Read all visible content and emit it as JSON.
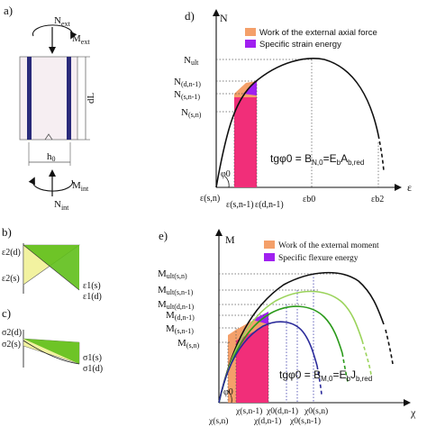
{
  "panel_a": {
    "label": "a)",
    "n_ext": "N",
    "n_ext_sub": "ext",
    "m_ext": "M",
    "m_ext_sub": "ext",
    "dl": "dL",
    "h0": "h",
    "h0_sub": "0",
    "n_int": "N",
    "n_int_sub": "int",
    "m_int": "M",
    "m_int_sub": "int"
  },
  "panel_b": {
    "label": "b)",
    "e2d": "ε2(d)",
    "e2s": "ε2(s)",
    "e1s": "ε1(s)",
    "e1d": "ε1(d)"
  },
  "panel_c": {
    "label": "c)",
    "s2d": "σ2(d)",
    "s2s": "σ2(s)",
    "s1s": "σ1(s)",
    "s1d": "σ1(d)"
  },
  "panel_d": {
    "label": "d)",
    "y_axis": "N",
    "x_axis": "ε",
    "legend": [
      {
        "label": "Work of the external axial force",
        "color": "#f4a06a"
      },
      {
        "label": "Specific strain energy",
        "color": "#a020f0"
      }
    ],
    "n_labels": {
      "ult": [
        "N",
        "ult"
      ],
      "dn1": [
        "N",
        "(d,n-1)"
      ],
      "sn1": [
        "N",
        "(s,n-1)"
      ],
      "sn": [
        "N",
        "(s,n)"
      ]
    },
    "e_labels": {
      "sn": "ε(s,n)",
      "sn1": "ε(s,n-1)",
      "dn1": "ε(d,n-1)",
      "b0": "εb0",
      "b2": "εb2"
    },
    "phi": "φ0",
    "formula": "tgφ0 = B",
    "formula_sub": "N,0",
    "formula_rest": "=E",
    "formula_sub2": "b",
    "formula_rest2": "A",
    "formula_sub3": "b,red"
  },
  "panel_e": {
    "label": "e)",
    "y_axis": "M",
    "x_axis": "χ",
    "legend": [
      {
        "label": "Work of the external moment",
        "color": "#f4a06a"
      },
      {
        "label": "Specific flexure energy",
        "color": "#a020f0"
      }
    ],
    "m_labels": {
      "ult_sn": [
        "M",
        "ult(s,n)"
      ],
      "ult_sn1": [
        "M",
        "ult(s,n-1)"
      ],
      "ult_dn1": [
        "M",
        "ult(d,n-1)"
      ],
      "dn1": [
        "M",
        "(d,n-1)"
      ],
      "sn1": [
        "M",
        "(s,n-1)"
      ],
      "sn": [
        "M",
        "(s,n)"
      ]
    },
    "chi_labels": {
      "sn1": "χ(s,n-1)",
      "sn": "χ(s,n)",
      "dn1": "χ(d,n-1)",
      "c0dn1": "χ0(d,n-1)",
      "c0sn1": "χ0(s,n-1)",
      "c0sn": "χ0(s,n)"
    },
    "phi": "φ0",
    "formula": "tgφ0 = B",
    "formula_sub": "M,0",
    "formula_rest": "=E",
    "formula_sub2": "b",
    "formula_rest2": "J",
    "formula_sub3": "b,red"
  },
  "colors": {
    "work_fill": "#f4a06a",
    "energy_fill": "#a020f0",
    "pink": "#f0287a",
    "green": "#5fbf1a",
    "light_green": "#9ad35a",
    "yellow": "#f2f2a0",
    "navy": "#2a2a7a",
    "blue_dash": "#3a3aa8"
  }
}
